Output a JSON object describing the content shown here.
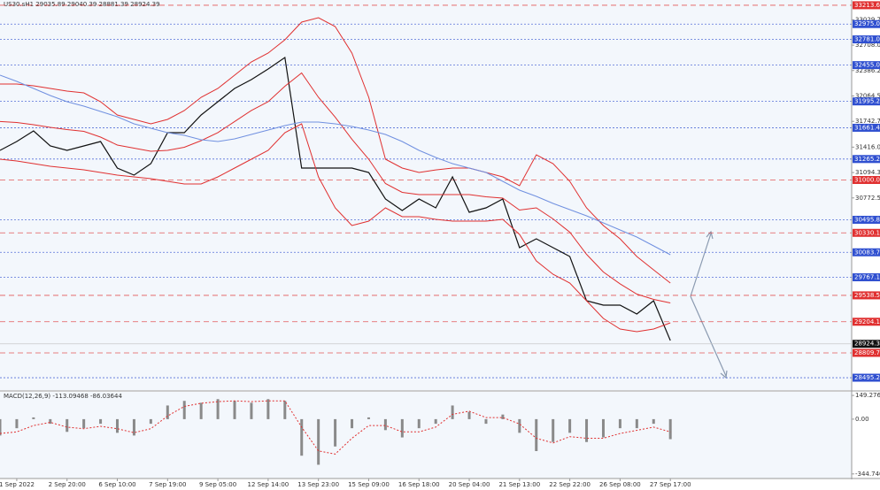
{
  "symbol_info": "US30.sH1  29035.89 29040.39 28881.39 28924.39",
  "chart_data": [
    {
      "type": "line",
      "categories": [
        null,
        "1 Sep 2022",
        null,
        null,
        "2 Sep 20:00",
        null,
        null,
        "6 Sep 10:00",
        null,
        null,
        "7 Sep 19:00",
        null,
        null,
        "9 Sep 05:00",
        null,
        null,
        "12 Sep 14:00",
        null,
        null,
        "13 Sep 23:00",
        null,
        null,
        "15 Sep 09:00",
        null,
        null,
        "16 Sep 18:00",
        null,
        null,
        "20 Sep 04:00",
        null,
        null,
        "21 Sep 13:00",
        null,
        null,
        "22 Sep 22:00",
        null,
        null,
        "26 Sep 08:00",
        null,
        null,
        "27 Sep 17:00"
      ],
      "series": [
        {
          "name": "Close",
          "color": "#111111",
          "values": [
            31375,
            31487,
            31622,
            31431,
            31375,
            31431,
            31487,
            31151,
            31061,
            31207,
            31599,
            31599,
            31823,
            31991,
            32159,
            32272,
            32406,
            32552,
            31151,
            31151,
            31151,
            31151,
            31095,
            30759,
            30613,
            30759,
            30647,
            31039,
            30591,
            30647,
            30759,
            30143,
            30255,
            30143,
            30031,
            29470,
            29414,
            29414,
            29302,
            29470,
            28966
          ]
        },
        {
          "name": "BB Upper",
          "color": "#e03030",
          "values": [
            32216,
            32216,
            32193,
            32160,
            32126,
            32104,
            31991,
            31823,
            31767,
            31711,
            31767,
            31879,
            32047,
            32160,
            32328,
            32496,
            32608,
            32776,
            33000,
            33056,
            32944,
            32608,
            32047,
            31263,
            31151,
            31095,
            31128,
            31151,
            31151,
            31095,
            31039,
            30927,
            31319,
            31207,
            30983,
            30647,
            30423,
            30255,
            30031,
            29862,
            29694
          ]
        },
        {
          "name": "BB Middle",
          "color": "#e03030",
          "values": [
            31740,
            31728,
            31700,
            31666,
            31638,
            31616,
            31543,
            31442,
            31403,
            31364,
            31375,
            31414,
            31498,
            31600,
            31740,
            31880,
            31992,
            32188,
            32356,
            32048,
            31796,
            31516,
            31263,
            30955,
            30843,
            30815,
            30815,
            30815,
            30815,
            30787,
            30770,
            30619,
            30647,
            30507,
            30339,
            30059,
            29835,
            29684,
            29555,
            29487,
            29442
          ]
        },
        {
          "name": "BB Lower",
          "color": "#e03030",
          "values": [
            31263,
            31241,
            31207,
            31173,
            31151,
            31129,
            31095,
            31061,
            31039,
            31017,
            30983,
            30949,
            30949,
            31039,
            31151,
            31263,
            31375,
            31599,
            31711,
            31039,
            30647,
            30423,
            30479,
            30647,
            30535,
            30535,
            30501,
            30479,
            30479,
            30479,
            30501,
            30311,
            29975,
            29806,
            29694,
            29470,
            29246,
            29112,
            29078,
            29112,
            29190
          ]
        },
        {
          "name": "MA",
          "color": "#7090e0",
          "values": [
            32328,
            32249,
            32160,
            32070,
            31991,
            31935,
            31868,
            31801,
            31711,
            31655,
            31599,
            31566,
            31510,
            31487,
            31521,
            31577,
            31633,
            31689,
            31734,
            31734,
            31711,
            31678,
            31633,
            31577,
            31487,
            31375,
            31286,
            31207,
            31151,
            31095,
            30983,
            30871,
            30793,
            30703,
            30625,
            30546,
            30456,
            30367,
            30277,
            30165,
            30053
          ]
        }
      ],
      "ylim": [
        28350,
        33280
      ],
      "yticks": [
        33029.75,
        {
          "value": 32708,
          "label": "32708.00"
        },
        32386.25,
        {
          "value": 32064.5,
          "label": "32064.50"
        },
        31742.75,
        31416.05,
        {
          "value": 31094.3,
          "label": "31094.30"
        },
        30772.55
      ],
      "levels": [
        {
          "value": 33213.63,
          "label": "33213.63",
          "color": "#e03030"
        },
        {
          "value": 32975,
          "label": "32975.00",
          "color": "#3050d0"
        },
        {
          "value": 32781,
          "label": "32781.00",
          "color": "#3050d0"
        },
        {
          "value": 32455,
          "label": "32455.00",
          "color": "#3050d0"
        },
        {
          "value": 31995.28,
          "label": "31995.28",
          "color": "#3050d0"
        },
        {
          "value": 31661.46,
          "label": "31661.46",
          "color": "#3050d0"
        },
        {
          "value": 31265.24,
          "label": "31265.24",
          "color": "#3050d0"
        },
        {
          "value": 31000,
          "label": "31000.00",
          "color": "#e03030"
        },
        {
          "value": 30495.88,
          "label": "30495.88",
          "color": "#3050d0"
        },
        {
          "value": 30330.18,
          "label": "30330.18",
          "color": "#e03030"
        },
        {
          "value": 30083.76,
          "label": "30083.76",
          "color": "#3050d0"
        },
        {
          "value": 29767.17,
          "label": "29767.17",
          "color": "#3050d0"
        },
        {
          "value": 29538.54,
          "label": "29538.54",
          "color": "#e03030"
        },
        {
          "value": 29204.12,
          "label": "29204.12",
          "color": "#e03030"
        },
        {
          "value": 28809.73,
          "label": "28809.73",
          "color": "#e03030"
        },
        {
          "value": 28495.23,
          "label": "28495.23",
          "color": "#3050d0"
        }
      ],
      "last_price": 28924.39
    },
    {
      "type": "bar",
      "title": "MACD(12,26,9) -113.09468 -86.03644",
      "series": [
        {
          "name": "MACD",
          "color": "#8a8a8a",
          "values": [
            -103,
            -57,
            11,
            -29,
            -80,
            -57,
            -29,
            -86,
            -103,
            -29,
            86,
            115,
            103,
            126,
            115,
            103,
            126,
            115,
            -230,
            -287,
            -172,
            -57,
            11,
            -69,
            -115,
            -57,
            -29,
            86,
            46,
            -29,
            29,
            -86,
            -201,
            -144,
            -86,
            -144,
            -115,
            -57,
            -57,
            -29,
            -126
          ]
        },
        {
          "name": "Signal",
          "color": "#e03030",
          "values": [
            -90,
            -80,
            -40,
            -20,
            -50,
            -60,
            -45,
            -60,
            -85,
            -60,
            20,
            80,
            100,
            110,
            115,
            110,
            115,
            115,
            -50,
            -200,
            -220,
            -120,
            -40,
            -40,
            -80,
            -80,
            -50,
            30,
            50,
            10,
            10,
            -30,
            -120,
            -150,
            -110,
            -120,
            -120,
            -90,
            -70,
            -50,
            -80
          ]
        }
      ],
      "ylim": [
        -368,
        172
      ],
      "yticks": [
        149.27659,
        {
          "value": 0,
          "label": "0.00"
        },
        -344.7404
      ]
    }
  ]
}
